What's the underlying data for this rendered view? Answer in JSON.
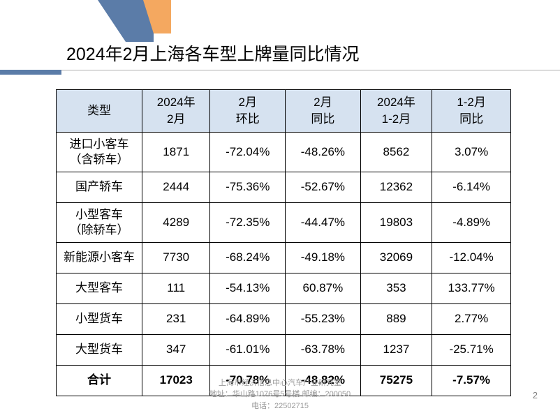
{
  "title": "2024年2月上海各车型上牌量同比情况",
  "table": {
    "headers": [
      "类型",
      "2024年\n2月",
      "2月\n环比",
      "2月\n同比",
      "2024年\n1-2月",
      "1-2月\n同比"
    ],
    "header_bg": "#d6e2f0",
    "border_color": "#000000",
    "rows": [
      {
        "label": "进口小客车\n（含轿车）",
        "values": [
          "1871",
          "-72.04%",
          "-48.26%",
          "8562",
          "3.07%"
        ]
      },
      {
        "label": "国产轿车",
        "values": [
          "2444",
          "-75.36%",
          "-52.67%",
          "12362",
          "-6.14%"
        ]
      },
      {
        "label": "小型客车\n（除轿车）",
        "values": [
          "4289",
          "-72.35%",
          "-44.47%",
          "19803",
          "-4.89%"
        ]
      },
      {
        "label": "新能源小客车",
        "values": [
          "7730",
          "-68.24%",
          "-49.18%",
          "32069",
          "-12.04%"
        ]
      },
      {
        "label": "大型客车",
        "values": [
          "111",
          "-54.13%",
          "60.87%",
          "353",
          "133.77%"
        ]
      },
      {
        "label": "小型货车",
        "values": [
          "231",
          "-64.89%",
          "-55.23%",
          "889",
          "2.77%"
        ]
      },
      {
        "label": "大型货车",
        "values": [
          "347",
          "-61.01%",
          "-63.78%",
          "1237",
          "-25.71%"
        ]
      }
    ],
    "total_row": {
      "label": "合计",
      "values": [
        "17023",
        "-70.78%",
        "-48.82%",
        "75275",
        "-7.57%"
      ]
    }
  },
  "footer": {
    "line1": "上海市经济信息中心汽车产业研究室",
    "line2": "地址：华山路1076号5号楼  邮编：200050",
    "line3": "电话：22502715"
  },
  "page_number": "2",
  "colors": {
    "blue_accent": "#5b7ca8",
    "orange_accent": "#f4a860",
    "gray_line": "#b0b0b0",
    "footer_text": "#999999"
  }
}
